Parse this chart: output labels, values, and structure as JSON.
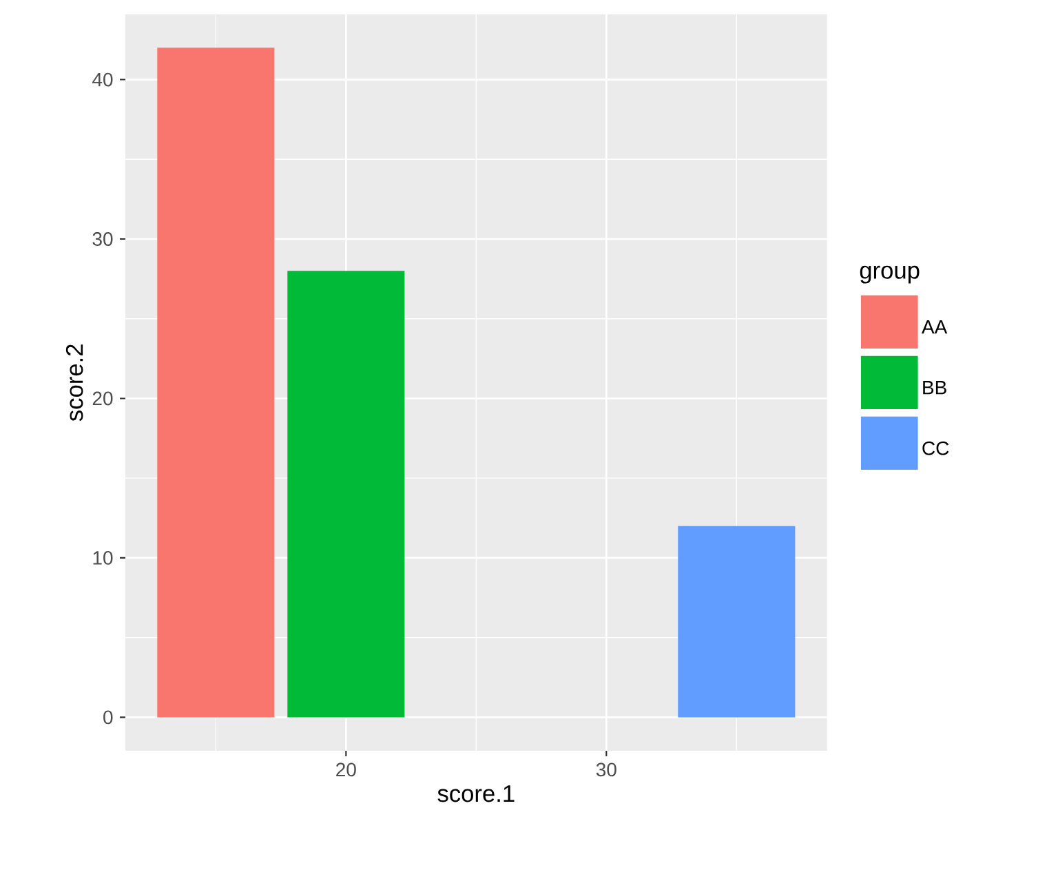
{
  "chart_data": {
    "type": "bar",
    "xlabel": "score.1",
    "ylabel": "score.2",
    "legend_title": "group",
    "series": [
      {
        "name": "AA",
        "color": "#f8766d",
        "x": [
          15
        ],
        "values": [
          42
        ]
      },
      {
        "name": "BB",
        "color": "#00ba38",
        "x": [
          20
        ],
        "values": [
          28
        ]
      },
      {
        "name": "CC",
        "color": "#619cff",
        "x": [
          35
        ],
        "values": [
          12
        ]
      }
    ],
    "xlim": [
      11.525,
      38.475
    ],
    "xticks": [
      20,
      30
    ],
    "ylim": [
      -2.1,
      44.1
    ],
    "yticks": [
      0,
      10,
      20,
      30,
      40
    ],
    "grid": true,
    "legend": "right"
  }
}
